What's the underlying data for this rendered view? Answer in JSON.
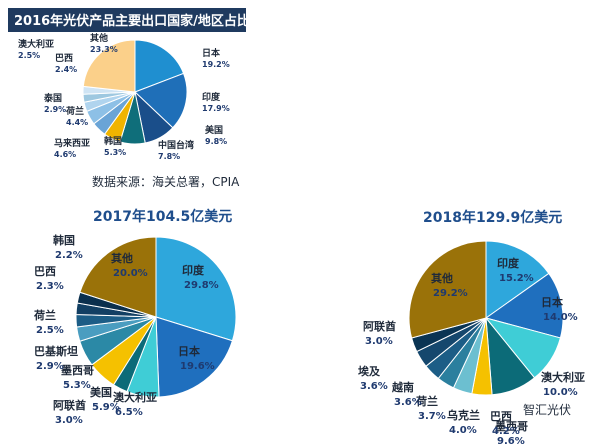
{
  "chart_data": [
    {
      "type": "pie",
      "title": "2016年光伏产品主要出口国家/地区占比",
      "source": "数据来源：海关总署，CPIA",
      "colors": {
        "title_bg": "#1f3a5f",
        "title_text": "#ffffff",
        "label_text": "#1f2a3a",
        "value_text": "#1f3a6f"
      },
      "slices": [
        {
          "name": "日本",
          "value": "19.2%",
          "pct": 19.2,
          "color": "#1f8fd0"
        },
        {
          "name": "印度",
          "value": "17.9%",
          "pct": 17.9,
          "color": "#1f6fb8"
        },
        {
          "name": "美国",
          "value": "9.8%",
          "pct": 9.8,
          "color": "#1a4e8a"
        },
        {
          "name": "中国台湾",
          "value": "7.8%",
          "pct": 7.8,
          "color": "#0f6e7a"
        },
        {
          "name": "韩国",
          "value": "5.3%",
          "pct": 5.3,
          "color": "#f0b400"
        },
        {
          "name": "马来西亚",
          "value": "4.6%",
          "pct": 4.6,
          "color": "#6aa4d6"
        },
        {
          "name": "荷兰",
          "value": "4.4%",
          "pct": 4.4,
          "color": "#8dc0e6"
        },
        {
          "name": "泰国",
          "value": "2.9%",
          "pct": 2.9,
          "color": "#b0d4ee"
        },
        {
          "name": "澳大利亚",
          "value": "2.5%",
          "pct": 2.5,
          "color": "#9ec8e0"
        },
        {
          "name": "巴西",
          "value": "2.4%",
          "pct": 2.4,
          "color": "#cfe4f4"
        },
        {
          "name": "其他",
          "value": "23.3%",
          "pct": 23.3,
          "color": "#fbd08a"
        }
      ]
    },
    {
      "type": "pie",
      "title": "2017年104.5亿美元",
      "colors": {
        "title_text": "#1f4e8c",
        "label_text": "#1f2a3a",
        "value_text": "#1f3a6f"
      },
      "slices": [
        {
          "name": "印度",
          "value": "29.8%",
          "pct": 29.8,
          "color": "#2ea7dc"
        },
        {
          "name": "日本",
          "value": "19.6%",
          "pct": 19.6,
          "color": "#1f6fbe"
        },
        {
          "name": "澳大利亚",
          "value": "6.5%",
          "pct": 6.5,
          "color": "#3fcdd6"
        },
        {
          "name": "阿联酋",
          "value": "3.0%",
          "pct": 3.0,
          "color": "#0c6b78"
        },
        {
          "name": "美国",
          "value": "5.9%",
          "pct": 5.9,
          "color": "#f5c100"
        },
        {
          "name": "墨西哥",
          "value": "5.3%",
          "pct": 5.3,
          "color": "#2b89a6"
        },
        {
          "name": "巴基斯坦",
          "value": "2.9%",
          "pct": 2.9,
          "color": "#4a9dc0"
        },
        {
          "name": "荷兰",
          "value": "2.5%",
          "pct": 2.5,
          "color": "#1c5d86"
        },
        {
          "name": "巴西",
          "value": "2.3%",
          "pct": 2.3,
          "color": "#123f63"
        },
        {
          "name": "韩国",
          "value": "2.2%",
          "pct": 2.2,
          "color": "#0a2f4d"
        },
        {
          "name": "其他",
          "value": "20.0%",
          "pct": 20.0,
          "color": "#9a7209"
        }
      ]
    },
    {
      "type": "pie",
      "title": "2018年129.9亿美元",
      "watermark": "智汇光伏",
      "colors": {
        "title_text": "#1f4e8c",
        "label_text": "#1f2a3a",
        "value_text": "#1f3a6f"
      },
      "slices": [
        {
          "name": "印度",
          "value": "15.2%",
          "pct": 15.2,
          "color": "#2ea7dc"
        },
        {
          "name": "日本",
          "value": "14.0%",
          "pct": 14.0,
          "color": "#1f6fbe"
        },
        {
          "name": "澳大利亚",
          "value": "10.0%",
          "pct": 10.0,
          "color": "#3fcdd6"
        },
        {
          "name": "墨西哥",
          "value": "9.6%",
          "pct": 9.6,
          "color": "#0c6b78"
        },
        {
          "name": "巴西",
          "value": "4.2%",
          "pct": 4.2,
          "color": "#f5c100"
        },
        {
          "name": "乌克兰",
          "value": "4.0%",
          "pct": 4.0,
          "color": "#6cbfd0"
        },
        {
          "name": "荷兰",
          "value": "3.7%",
          "pct": 3.7,
          "color": "#2b7f9e"
        },
        {
          "name": "越南",
          "value": "3.6%",
          "pct": 3.6,
          "color": "#1c5d86"
        },
        {
          "name": "埃及",
          "value": "3.6%",
          "pct": 3.6,
          "color": "#15476d"
        },
        {
          "name": "阿联酋",
          "value": "3.0%",
          "pct": 3.0,
          "color": "#0a3453"
        },
        {
          "name": "其他",
          "value": "29.2%",
          "pct": 29.2,
          "color": "#9a7209"
        }
      ]
    }
  ]
}
